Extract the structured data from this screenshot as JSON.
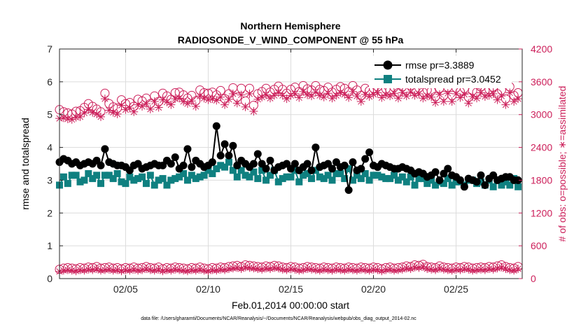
{
  "chart_data": {
    "type": "line",
    "title": "Northern Hemisphere",
    "subtitle": "RADIOSONDE_V_WIND_COMPONENT @ 55 hPa",
    "xlabel": "Feb.01,2014 00:00:00 start",
    "ylabel_left": "rmse and totalspread",
    "ylabel_right": "# of obs: o=possible; ∗=assimilated",
    "footer": "data file: /Users/gharamti/Documents/NCAR/Reanalysis/~/Documents/NCAR/Reanalysis/webpub/obs_diag_output_2014-02.nc",
    "xlim": [
      1,
      29
    ],
    "x_ticks": [
      5,
      10,
      15,
      20,
      25
    ],
    "x_tick_labels": [
      "02/05",
      "02/10",
      "02/15",
      "02/20",
      "02/25"
    ],
    "ylim_left": [
      0,
      7
    ],
    "y_left_ticks": [
      "0",
      "1",
      "2",
      "3",
      "4",
      "5",
      "6",
      "7"
    ],
    "ylim_right": [
      0,
      4200
    ],
    "y_right_ticks": [
      "0",
      "600",
      "1200",
      "1800",
      "2400",
      "3000",
      "3600",
      "4200"
    ],
    "colors": {
      "rmse": "#000000",
      "spread": "#0f8080",
      "obs": "#cc1f5a",
      "grid": "#dcdcdc"
    },
    "legend": {
      "rmse_label": "rmse pr=3.3889",
      "spread_label": "totalspread pr=3.0452",
      "placement": "top-right"
    },
    "x": [
      1.0,
      1.25,
      1.5,
      1.75,
      2.0,
      2.25,
      2.5,
      2.75,
      3.0,
      3.25,
      3.5,
      3.75,
      4.0,
      4.25,
      4.5,
      4.75,
      5.0,
      5.25,
      5.5,
      5.75,
      6.0,
      6.25,
      6.5,
      6.75,
      7.0,
      7.25,
      7.5,
      7.75,
      8.0,
      8.25,
      8.5,
      8.75,
      9.0,
      9.25,
      9.5,
      9.75,
      10.0,
      10.25,
      10.5,
      10.75,
      11.0,
      11.25,
      11.5,
      11.75,
      12.0,
      12.25,
      12.5,
      12.75,
      13.0,
      13.25,
      13.5,
      13.75,
      14.0,
      14.25,
      14.5,
      14.75,
      15.0,
      15.25,
      15.5,
      15.75,
      16.0,
      16.25,
      16.5,
      16.75,
      17.0,
      17.25,
      17.5,
      17.75,
      18.0,
      18.25,
      18.5,
      18.75,
      19.0,
      19.25,
      19.5,
      19.75,
      20.0,
      20.25,
      20.5,
      20.75,
      21.0,
      21.25,
      21.5,
      21.75,
      22.0,
      22.25,
      22.5,
      22.75,
      23.0,
      23.25,
      23.5,
      23.75,
      24.0,
      24.25,
      24.5,
      24.75,
      25.0,
      25.25,
      25.5,
      25.75,
      26.0,
      26.25,
      26.5,
      26.75,
      27.0,
      27.25,
      27.5,
      27.75,
      28.0,
      28.25,
      28.5,
      28.75
    ],
    "rmse": [
      3.55,
      3.65,
      3.6,
      3.5,
      3.55,
      3.45,
      3.5,
      3.55,
      3.5,
      3.6,
      3.45,
      3.95,
      3.55,
      3.5,
      3.45,
      3.45,
      3.4,
      3.3,
      3.45,
      3.5,
      3.35,
      3.4,
      3.45,
      3.5,
      3.45,
      3.45,
      3.6,
      3.5,
      3.7,
      3.35,
      3.45,
      3.95,
      3.4,
      3.6,
      3.5,
      3.4,
      3.45,
      3.55,
      4.65,
      3.75,
      4.1,
      3.75,
      4.05,
      3.45,
      3.6,
      3.5,
      3.4,
      3.5,
      3.8,
      3.5,
      3.35,
      3.6,
      3.3,
      3.4,
      3.45,
      3.5,
      3.35,
      3.5,
      3.3,
      3.4,
      3.5,
      3.3,
      4.0,
      3.4,
      3.45,
      3.5,
      3.35,
      3.55,
      3.4,
      3.45,
      2.7,
      3.55,
      3.3,
      3.35,
      3.65,
      3.85,
      3.45,
      3.4,
      3.5,
      3.45,
      3.4,
      3.35,
      3.35,
      3.4,
      3.35,
      3.3,
      3.2,
      3.25,
      3.2,
      3.1,
      3.15,
      3.25,
      3.0,
      3.2,
      3.35,
      3.15,
      3.1,
      3.0,
      2.8,
      3.05,
      3.0,
      2.95,
      3.15,
      2.85,
      3.05,
      3.15,
      3.0,
      3.05,
      3.1,
      3.1,
      3.0,
      3.0,
      3.0,
      2.95,
      3.1,
      2.85,
      3.05,
      3.15,
      3.2,
      3.0,
      2.8
    ],
    "spread": [
      2.85,
      3.1,
      2.9,
      3.15,
      3.15,
      2.95,
      3.0,
      3.2,
      3.05,
      3.15,
      2.9,
      3.15,
      3.15,
      3.05,
      3.2,
      2.95,
      2.9,
      3.1,
      3.0,
      3.05,
      3.1,
      2.9,
      3.15,
      2.85,
      3.0,
      3.05,
      2.85,
      3.0,
      3.05,
      3.1,
      3.2,
      3.0,
      3.15,
      3.05,
      3.1,
      3.15,
      3.3,
      3.2,
      3.35,
      3.45,
      3.4,
      3.55,
      3.3,
      3.1,
      3.3,
      3.15,
      3.1,
      3.25,
      3.05,
      3.3,
      3.0,
      3.15,
      3.3,
      2.95,
      3.05,
      3.1,
      3.1,
      3.3,
      2.95,
      3.15,
      3.2,
      3.05,
      3.3,
      3.1,
      3.05,
      3.15,
      3.0,
      3.2,
      3.2,
      3.05,
      3.35,
      3.0,
      3.15,
      3.05,
      3.2,
      3.0,
      3.15,
      3.15,
      3.1,
      3.05,
      3.05,
      3.15,
      3.0,
      3.1,
      2.95,
      3.1,
      2.85,
      3.05,
      3.05,
      2.9,
      3.0,
      2.85,
      2.95,
      2.9,
      3.05,
      2.85,
      2.95,
      2.95,
      2.85,
      3.0,
      3.0,
      2.9,
      2.95,
      2.85,
      3.0,
      2.8,
      3.0,
      2.85,
      2.95,
      2.85,
      3.05,
      2.8,
      3.0,
      3.05,
      2.85,
      2.95,
      2.9,
      2.8,
      3.0,
      2.8
    ],
    "obs_possible": [
      3090,
      3050,
      3030,
      3010,
      3060,
      3070,
      3130,
      3200,
      3150,
      3100,
      3050,
      3390,
      3200,
      3140,
      3120,
      3270,
      3200,
      3220,
      3150,
      3280,
      3250,
      3300,
      3200,
      3340,
      3240,
      3390,
      3340,
      3280,
      3400,
      3410,
      3360,
      3300,
      3350,
      3250,
      3450,
      3400,
      3390,
      3410,
      3360,
      3440,
      3290,
      3380,
      3490,
      3320,
      3480,
      3250,
      3480,
      3170,
      3380,
      3420,
      3480,
      3410,
      3460,
      3520,
      3460,
      3390,
      3460,
      3500,
      3420,
      3530,
      3470,
      3450,
      3530,
      3460,
      3440,
      3500,
      3410,
      3460,
      3510,
      3480,
      3420,
      3530,
      3450,
      3350,
      3480,
      3440,
      3480,
      3510,
      3420,
      3470,
      3450,
      3500,
      3400,
      3510,
      3450,
      3530,
      3460,
      3490,
      3410,
      3450,
      3430,
      3330,
      3480,
      3350,
      3500,
      3350,
      3490,
      3420,
      3480,
      3320,
      3440,
      3410,
      3510,
      3440,
      3460,
      3500,
      3380,
      3450,
      3290,
      3510,
      3350,
      3400,
      3410,
      3420,
      3490,
      3450,
      3380,
      3460,
      3490,
      3370
    ],
    "obs_assimilated": [
      2930,
      2940,
      2920,
      2910,
      2950,
      2960,
      3030,
      3090,
      3040,
      3010,
      2960,
      3290,
      3080,
      3040,
      3010,
      3170,
      3090,
      3120,
      3050,
      3180,
      3150,
      3200,
      3100,
      3240,
      3130,
      3270,
      3230,
      3180,
      3290,
      3300,
      3240,
      3200,
      3250,
      3150,
      3340,
      3300,
      3270,
      3290,
      3260,
      3320,
      3180,
      3280,
      3380,
      3210,
      3360,
      3140,
      3380,
      3060,
      3280,
      3320,
      3360,
      3300,
      3350,
      3400,
      3350,
      3290,
      3350,
      3380,
      3310,
      3420,
      3360,
      3340,
      3410,
      3350,
      3320,
      3390,
      3300,
      3350,
      3400,
      3370,
      3310,
      3420,
      3340,
      3240,
      3370,
      3330,
      3370,
      3400,
      3310,
      3360,
      3340,
      3390,
      3300,
      3400,
      3340,
      3410,
      3350,
      3380,
      3300,
      3340,
      3320,
      3220,
      3370,
      3240,
      3390,
      3240,
      3380,
      3310,
      3370,
      3210,
      3330,
      3300,
      3400,
      3330,
      3350,
      3380,
      3270,
      3340,
      3180,
      3400,
      3240,
      3290,
      3300,
      3310,
      3380,
      3340,
      3270,
      3350,
      3380,
      3260
    ],
    "obs_bottom_possible": [
      170,
      190,
      200,
      190,
      180,
      200,
      190,
      210,
      200,
      220,
      190,
      200,
      210,
      190,
      200,
      180,
      200,
      190,
      210,
      190,
      200,
      220,
      200,
      190,
      210,
      180,
      200,
      190,
      210,
      200,
      190,
      180,
      200,
      190,
      210,
      190,
      180,
      200,
      190,
      210,
      200,
      220,
      230,
      240,
      220,
      250,
      240,
      230,
      220,
      210,
      230,
      220,
      240,
      230,
      210,
      200,
      220,
      210,
      190,
      200,
      220,
      210,
      200,
      190,
      210,
      200,
      190,
      210,
      200,
      190,
      210,
      200,
      190,
      210,
      200,
      190,
      210,
      200,
      180,
      200,
      210,
      190,
      200,
      210,
      230,
      220,
      250,
      240,
      260,
      220,
      210,
      200,
      230,
      210,
      200,
      190,
      210,
      200,
      220,
      210,
      190,
      200,
      210,
      200,
      220,
      210,
      230,
      250,
      220,
      200,
      190,
      220,
      200,
      190,
      230,
      210,
      200,
      220,
      240,
      210
    ],
    "obs_bottom_assimilated": [
      130,
      150,
      160,
      150,
      140,
      160,
      150,
      170,
      160,
      180,
      150,
      160,
      170,
      150,
      160,
      140,
      160,
      150,
      170,
      150,
      160,
      180,
      160,
      150,
      170,
      140,
      160,
      150,
      170,
      160,
      150,
      140,
      160,
      150,
      170,
      150,
      140,
      160,
      150,
      170,
      160,
      180,
      190,
      200,
      180,
      210,
      200,
      190,
      180,
      170,
      190,
      180,
      200,
      190,
      170,
      160,
      180,
      170,
      150,
      160,
      180,
      170,
      160,
      150,
      170,
      160,
      150,
      170,
      160,
      150,
      170,
      160,
      150,
      170,
      160,
      150,
      170,
      160,
      140,
      160,
      170,
      150,
      160,
      170,
      190,
      180,
      210,
      200,
      220,
      180,
      170,
      160,
      190,
      170,
      160,
      150,
      170,
      160,
      180,
      170,
      150,
      160,
      170,
      160,
      180,
      170,
      190,
      210,
      180,
      160,
      150,
      180,
      160,
      150,
      190,
      170,
      160,
      180,
      200,
      170
    ]
  }
}
